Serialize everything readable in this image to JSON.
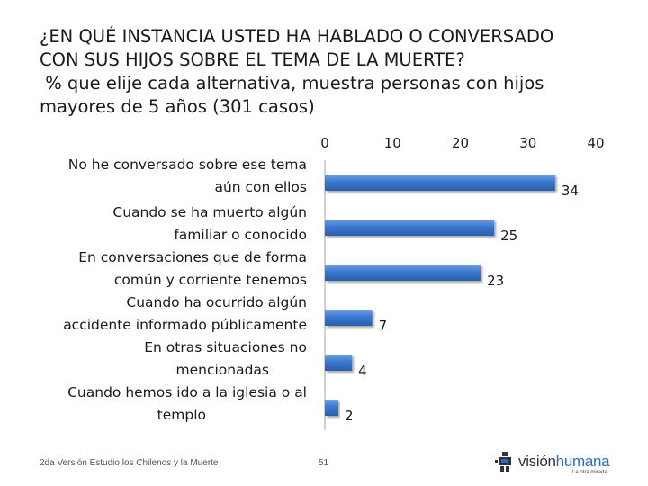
{
  "title": {
    "line1": "¿EN QUÉ INSTANCIA USTED HA HABLADO O CONVERSADO",
    "line2": "CON SUS HIJOS SOBRE EL TEMA DE LA MUERTE?",
    "line3": " % que elije cada alternativa, muestra personas con hijos",
    "line4": "mayores de 5 años (301 casos)"
  },
  "chart_data": {
    "type": "bar",
    "orientation": "horizontal",
    "title": "¿EN QUÉ INSTANCIA USTED HA HABLADO O CONVERSADO CON SUS HIJOS SOBRE EL TEMA DE LA MUERTE?",
    "subtitle": "% que elije cada alternativa, muestra personas con hijos mayores de 5 años (301 casos)",
    "categories": [
      [
        "No he conversado sobre ese tema",
        "aún con ellos"
      ],
      [
        "Cuando se ha muerto algún",
        "familiar o conocido"
      ],
      [
        "En conversaciones que de forma",
        "común y corriente tenemos"
      ],
      [
        "Cuando ha ocurrido algún",
        "accidente informado públicamente"
      ],
      [
        "En otras situaciones no",
        "mencionadas"
      ],
      [
        "Cuando hemos ido a la iglesia o al",
        "templo"
      ]
    ],
    "values": [
      34,
      25,
      23,
      7,
      4,
      2
    ],
    "xlim": [
      0,
      40
    ],
    "xticks": [
      0,
      10,
      20,
      30,
      40
    ],
    "axis_position": "top",
    "xlabel": "",
    "ylabel": "",
    "grid": false,
    "bar_color": "#3a78d0"
  },
  "footer": {
    "source": "2da Versión Estudio los Chilenos y la Muerte",
    "page": "51"
  },
  "logo": {
    "part1": "visión",
    "part2": "humana",
    "tagline": "La otra mirada"
  }
}
